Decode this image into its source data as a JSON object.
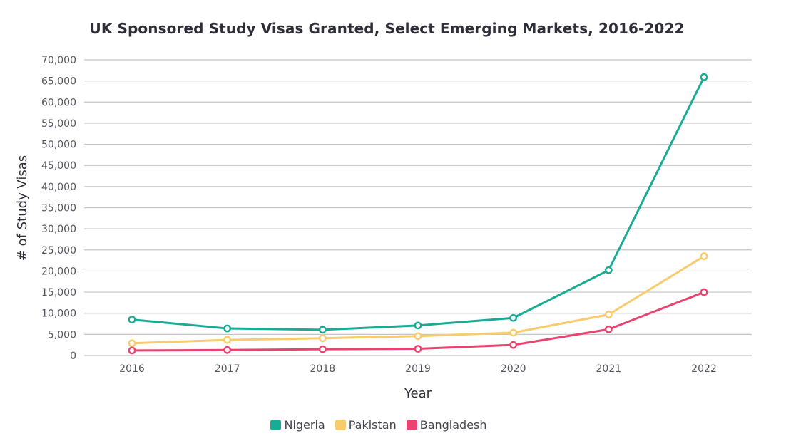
{
  "chart_data": {
    "type": "line",
    "title": "UK Sponsored Study Visas Granted, Select Emerging Markets, 2016-2022",
    "xlabel": "Year",
    "ylabel": "# of Study Visas",
    "categories": [
      "2016",
      "2017",
      "2018",
      "2019",
      "2020",
      "2021",
      "2022"
    ],
    "ylim": [
      0,
      70000
    ],
    "yticks": [
      0,
      5000,
      10000,
      15000,
      20000,
      25000,
      30000,
      35000,
      40000,
      45000,
      50000,
      55000,
      60000,
      65000,
      70000
    ],
    "ytick_labels": [
      "0",
      "5,000",
      "10,000",
      "15,000",
      "20,000",
      "25,000",
      "30,000",
      "35,000",
      "40,000",
      "45,000",
      "50,000",
      "55,000",
      "60,000",
      "65,000",
      "70,000"
    ],
    "grid": "horizontal",
    "legend_position": "bottom-center",
    "series": [
      {
        "name": "Nigeria",
        "color": "#1aab95",
        "values": [
          8500,
          6400,
          6100,
          7100,
          8900,
          20200,
          65900
        ]
      },
      {
        "name": "Pakistan",
        "color": "#f8cb6c",
        "values": [
          2900,
          3700,
          4100,
          4600,
          5400,
          9700,
          23500
        ]
      },
      {
        "name": "Bangladesh",
        "color": "#ea4370",
        "values": [
          1200,
          1300,
          1500,
          1600,
          2500,
          6200,
          15000
        ]
      }
    ]
  }
}
